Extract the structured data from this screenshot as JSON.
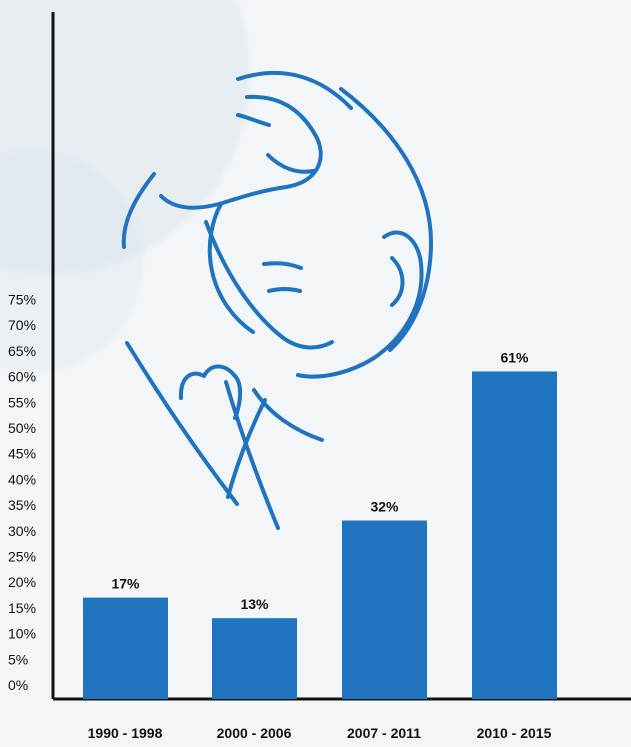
{
  "chart_data": {
    "type": "bar",
    "categories": [
      "1990 - 1998",
      "2000 - 2006",
      "2007 - 2011",
      "2010 - 2015"
    ],
    "values": [
      17,
      13,
      32,
      61
    ],
    "value_labels": [
      "17%",
      "13%",
      "32%",
      "61%"
    ],
    "y_ticks": [
      "0%",
      "5%",
      "10%",
      "15%",
      "20%",
      "25%",
      "30%",
      "35%",
      "40%",
      "45%",
      "50%",
      "55%",
      "60%",
      "65%",
      "70%",
      "75%"
    ],
    "ylim": [
      0,
      75
    ],
    "grid": false,
    "bar_color": "#1f73bf",
    "axis_color": "#111111",
    "illustration_color": "#1f73bf",
    "illustration_icon": "mother-and-baby-icon"
  }
}
